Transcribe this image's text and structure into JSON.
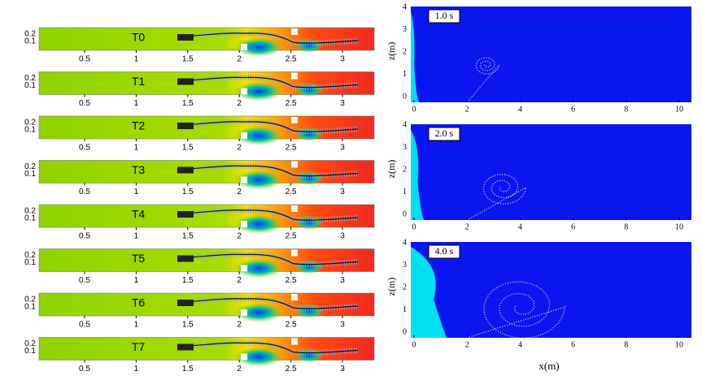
{
  "strips": {
    "labels": [
      "T0",
      "T1",
      "T2",
      "T3",
      "T4",
      "T5",
      "T6",
      "T7"
    ],
    "xticks": [
      0.5,
      1,
      1.5,
      2,
      2.5,
      3
    ],
    "yticks": [
      0.2,
      0.1
    ]
  },
  "panels": {
    "times": [
      "1.0 s",
      "2.0 s",
      "4.0 s"
    ],
    "xticks": [
      0,
      2,
      4,
      6,
      8,
      10
    ],
    "yticks": [
      0,
      1,
      2,
      3,
      4
    ],
    "xlabel": "x(m)",
    "ylabel": "z(m)"
  }
}
